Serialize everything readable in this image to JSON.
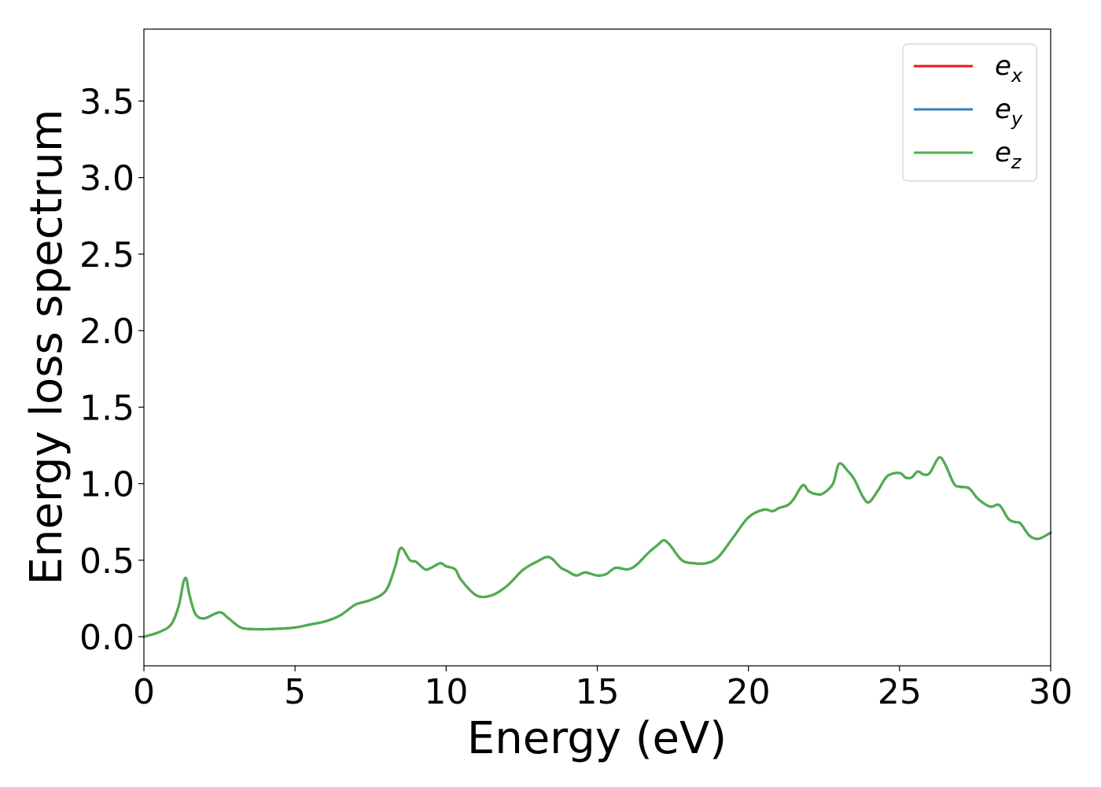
{
  "chart_data": {
    "type": "line",
    "title": "",
    "xlabel": "Energy (eV)",
    "ylabel": "Energy loss spectrum",
    "xlim": [
      0,
      30
    ],
    "ylim": [
      -0.19,
      3.97
    ],
    "xticks": [
      0,
      5,
      10,
      15,
      20,
      25,
      30
    ],
    "xtick_labels": [
      "0",
      "5",
      "10",
      "15",
      "20",
      "25",
      "30"
    ],
    "yticks": [
      0.0,
      0.5,
      1.0,
      1.5,
      2.0,
      2.5,
      3.0,
      3.5
    ],
    "ytick_labels": [
      "0.0",
      "0.5",
      "1.0",
      "1.5",
      "2.0",
      "2.5",
      "3.0",
      "3.5"
    ],
    "grid": false,
    "legend_position": "top-right",
    "x": [
      0,
      0.5,
      0.9,
      1.15,
      1.3,
      1.4,
      1.5,
      1.7,
      2.0,
      2.5,
      2.8,
      3.2,
      3.6,
      4.2,
      5.0,
      5.5,
      6.0,
      6.5,
      7.0,
      7.5,
      8.0,
      8.3,
      8.5,
      8.8,
      9.0,
      9.3,
      9.5,
      9.8,
      10.0,
      10.3,
      10.5,
      11.0,
      11.5,
      12.0,
      12.5,
      12.8,
      13.0,
      13.3,
      13.5,
      13.8,
      14.0,
      14.3,
      14.6,
      15.0,
      15.3,
      15.6,
      16.0,
      16.3,
      16.7,
      17.0,
      17.2,
      17.4,
      17.8,
      18.2,
      18.6,
      19.0,
      19.5,
      20.0,
      20.5,
      20.8,
      21.0,
      21.3,
      21.5,
      21.8,
      22.0,
      22.3,
      22.5,
      22.8,
      23.0,
      23.3,
      23.5,
      23.8,
      24.0,
      24.3,
      24.6,
      25.0,
      25.2,
      25.4,
      25.6,
      25.8,
      26.0,
      26.3,
      26.5,
      26.8,
      27.0,
      27.3,
      27.6,
      28.0,
      28.3,
      28.6,
      28.8,
      29.0,
      29.3,
      29.6,
      30.0
    ],
    "series": [
      {
        "name": "e_x",
        "color": "#e41a1c",
        "y": [
          0.0,
          0.03,
          0.08,
          0.2,
          0.35,
          0.38,
          0.28,
          0.15,
          0.12,
          0.16,
          0.12,
          0.06,
          0.05,
          0.05,
          0.06,
          0.08,
          0.1,
          0.14,
          0.21,
          0.24,
          0.3,
          0.45,
          0.58,
          0.5,
          0.49,
          0.44,
          0.45,
          0.48,
          0.46,
          0.44,
          0.37,
          0.27,
          0.27,
          0.33,
          0.43,
          0.47,
          0.49,
          0.52,
          0.51,
          0.45,
          0.43,
          0.4,
          0.42,
          0.4,
          0.41,
          0.45,
          0.44,
          0.47,
          0.55,
          0.6,
          0.63,
          0.6,
          0.5,
          0.48,
          0.48,
          0.52,
          0.65,
          0.78,
          0.83,
          0.82,
          0.84,
          0.86,
          0.9,
          0.99,
          0.95,
          0.93,
          0.94,
          1.0,
          1.13,
          1.08,
          1.03,
          0.91,
          0.88,
          0.96,
          1.05,
          1.07,
          1.04,
          1.04,
          1.08,
          1.06,
          1.07,
          1.17,
          1.13,
          1.0,
          0.98,
          0.97,
          0.9,
          0.85,
          0.86,
          0.77,
          0.75,
          0.74,
          0.66,
          0.64,
          0.68
        ]
      },
      {
        "name": "e_y",
        "color": "#377eb8",
        "y": [
          0.0,
          0.03,
          0.08,
          0.2,
          0.35,
          0.38,
          0.28,
          0.15,
          0.12,
          0.16,
          0.12,
          0.06,
          0.05,
          0.05,
          0.06,
          0.08,
          0.1,
          0.14,
          0.21,
          0.24,
          0.3,
          0.45,
          0.58,
          0.5,
          0.49,
          0.44,
          0.45,
          0.48,
          0.46,
          0.44,
          0.37,
          0.27,
          0.27,
          0.33,
          0.43,
          0.47,
          0.49,
          0.52,
          0.51,
          0.45,
          0.43,
          0.4,
          0.42,
          0.4,
          0.41,
          0.45,
          0.44,
          0.47,
          0.55,
          0.6,
          0.63,
          0.6,
          0.5,
          0.48,
          0.48,
          0.52,
          0.65,
          0.78,
          0.83,
          0.82,
          0.84,
          0.86,
          0.9,
          0.99,
          0.95,
          0.93,
          0.94,
          1.0,
          1.13,
          1.08,
          1.03,
          0.91,
          0.88,
          0.96,
          1.05,
          1.07,
          1.04,
          1.04,
          1.08,
          1.06,
          1.07,
          1.17,
          1.13,
          1.0,
          0.98,
          0.97,
          0.9,
          0.85,
          0.86,
          0.77,
          0.75,
          0.74,
          0.66,
          0.64,
          0.68
        ]
      },
      {
        "name": "e_z",
        "color": "#4daf4a",
        "y": [
          0.0,
          0.03,
          0.08,
          0.2,
          0.35,
          0.38,
          0.28,
          0.15,
          0.12,
          0.16,
          0.12,
          0.06,
          0.05,
          0.05,
          0.06,
          0.08,
          0.1,
          0.14,
          0.21,
          0.24,
          0.3,
          0.45,
          0.58,
          0.5,
          0.49,
          0.44,
          0.45,
          0.48,
          0.46,
          0.44,
          0.37,
          0.27,
          0.27,
          0.33,
          0.43,
          0.47,
          0.49,
          0.52,
          0.51,
          0.45,
          0.43,
          0.4,
          0.42,
          0.4,
          0.41,
          0.45,
          0.44,
          0.47,
          0.55,
          0.6,
          0.63,
          0.6,
          0.5,
          0.48,
          0.48,
          0.52,
          0.65,
          0.78,
          0.83,
          0.82,
          0.84,
          0.86,
          0.9,
          0.99,
          0.95,
          0.93,
          0.94,
          1.0,
          1.13,
          1.08,
          1.03,
          0.91,
          0.88,
          0.96,
          1.05,
          1.07,
          1.04,
          1.04,
          1.08,
          1.06,
          1.07,
          1.17,
          1.13,
          1.0,
          0.98,
          0.97,
          0.9,
          0.85,
          0.86,
          0.77,
          0.75,
          0.74,
          0.66,
          0.64,
          0.68
        ]
      }
    ],
    "legend": [
      {
        "base": "e",
        "sub": "x",
        "color": "#e41a1c"
      },
      {
        "base": "e",
        "sub": "y",
        "color": "#377eb8"
      },
      {
        "base": "e",
        "sub": "z",
        "color": "#4daf4a"
      }
    ]
  }
}
